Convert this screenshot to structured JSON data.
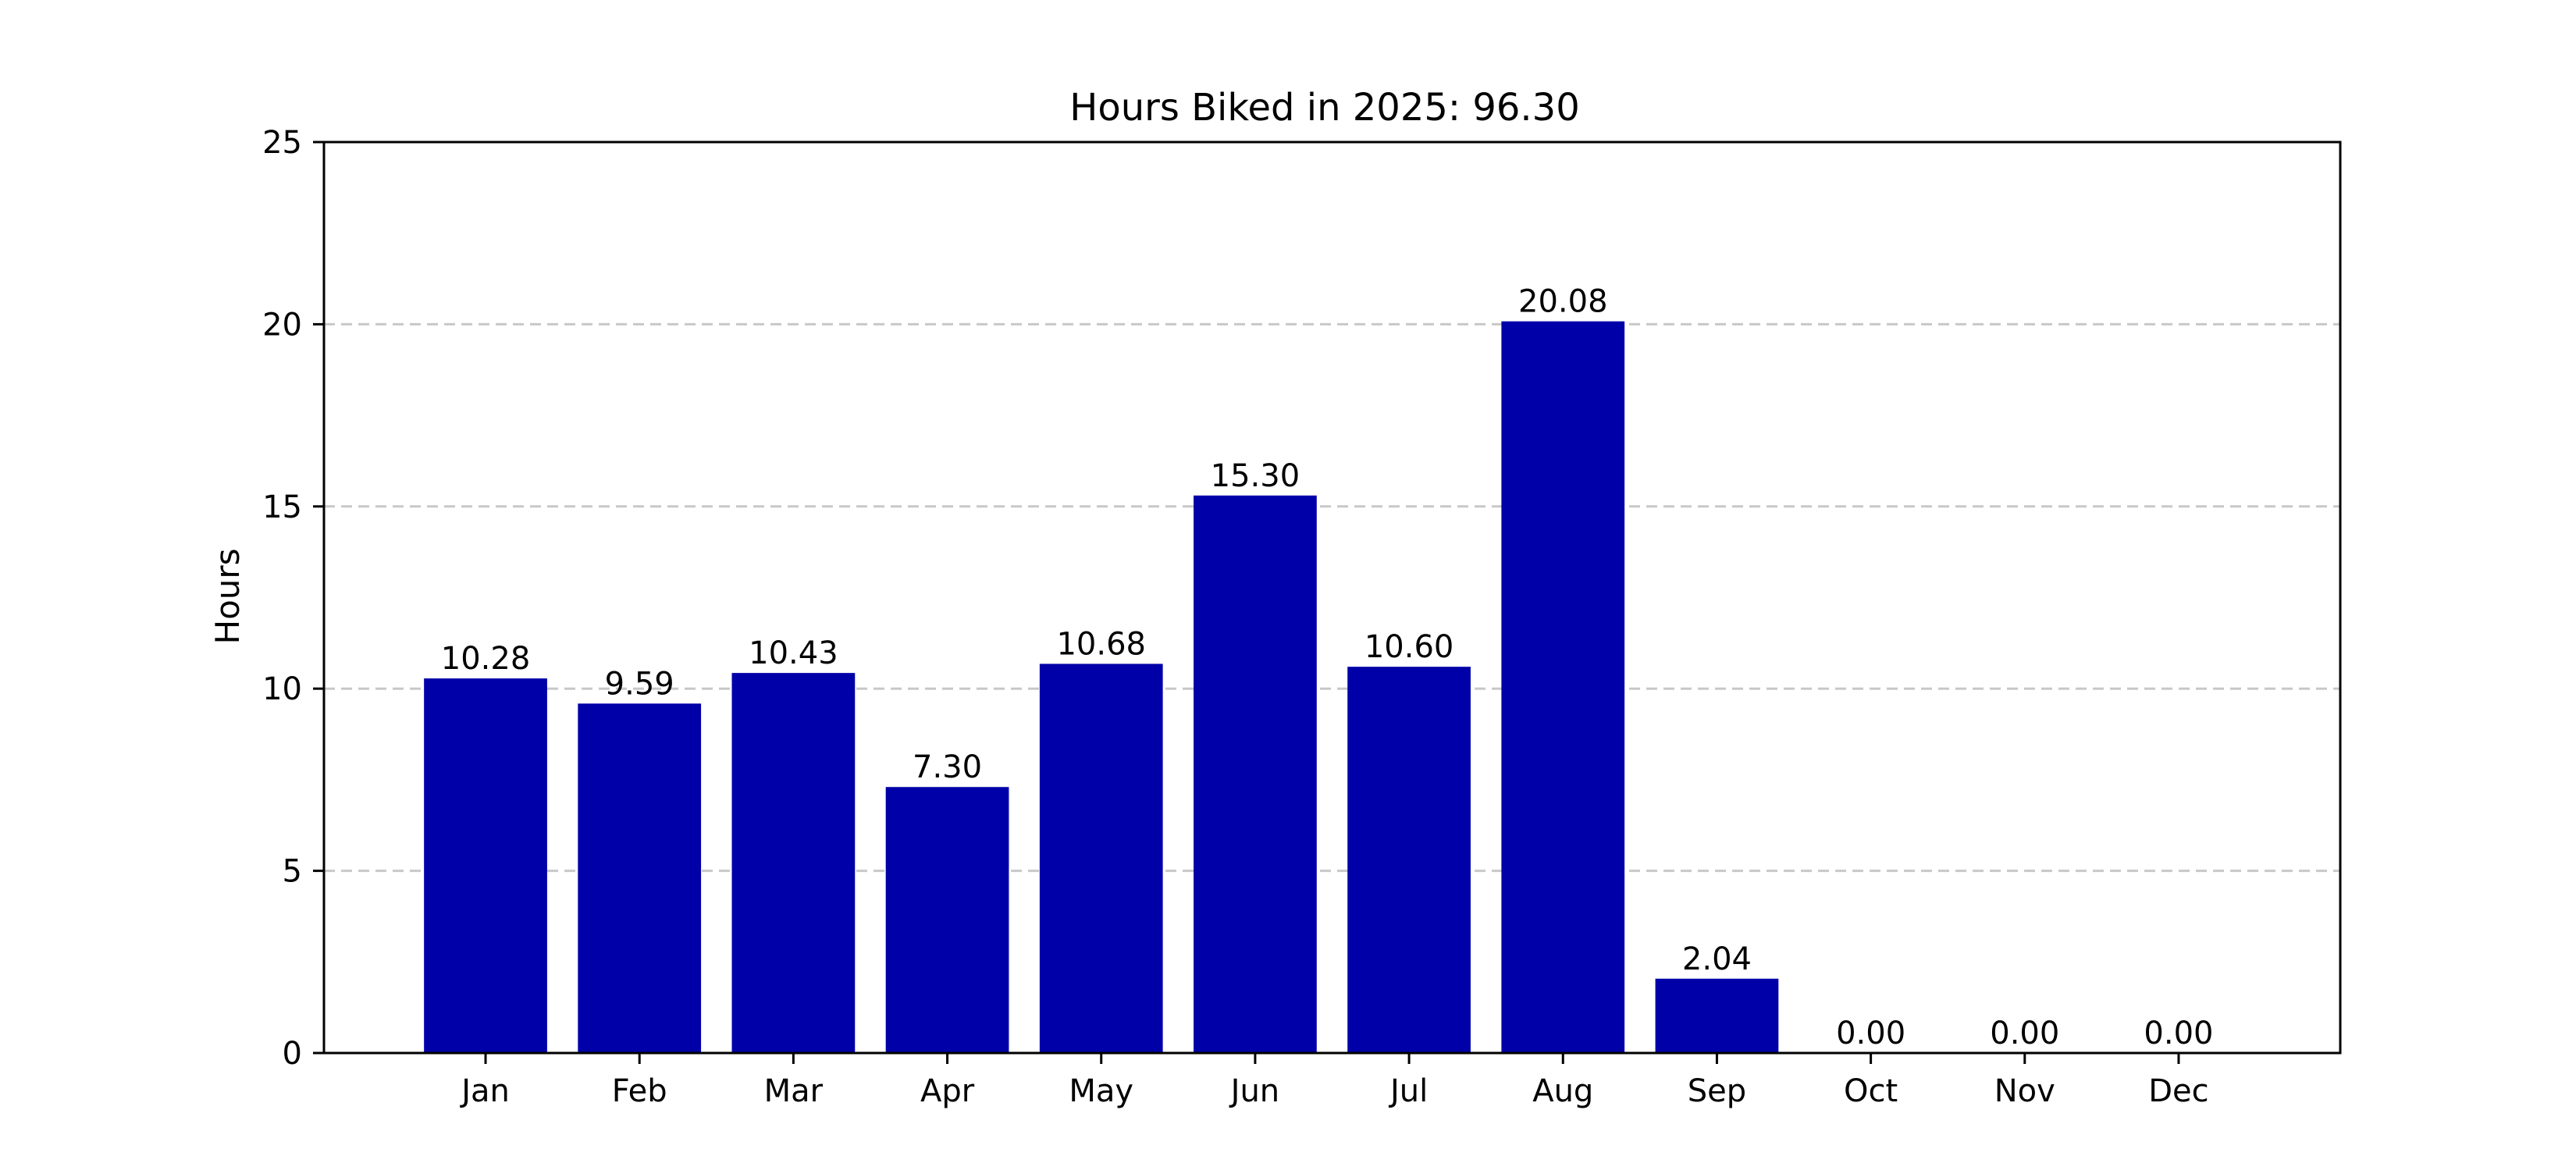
{
  "chart_data": {
    "type": "bar",
    "title": "Hours Biked in 2025: 96.30",
    "xlabel": "",
    "ylabel": "Hours",
    "categories": [
      "Jan",
      "Feb",
      "Mar",
      "Apr",
      "May",
      "Jun",
      "Jul",
      "Aug",
      "Sep",
      "Oct",
      "Nov",
      "Dec"
    ],
    "values": [
      10.28,
      9.59,
      10.43,
      7.3,
      10.68,
      15.3,
      10.6,
      20.08,
      2.04,
      0.0,
      0.0,
      0.0
    ],
    "value_labels": [
      "10.28",
      "9.59",
      "10.43",
      "7.30",
      "10.68",
      "15.30",
      "10.60",
      "20.08",
      "2.04",
      "0.00",
      "0.00",
      "0.00"
    ],
    "ylim": [
      0,
      25
    ],
    "yticks": [
      0,
      5,
      10,
      15,
      20,
      25
    ],
    "ytick_labels": [
      "0",
      "5",
      "10",
      "15",
      "20",
      "25"
    ],
    "grid": "y-dashed",
    "legend": "none",
    "colors": {
      "bar": "#0000a8",
      "grid": "#c8c8c8",
      "axis": "#000000"
    }
  }
}
